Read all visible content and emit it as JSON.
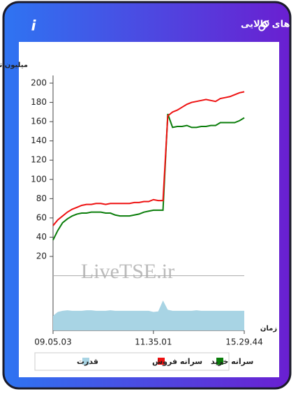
{
  "header": {
    "title": "سرانه ی خرید و فروش حقیقی در صندوق های کالایی",
    "info_icon": "i"
  },
  "chart_data": {
    "type": "line",
    "y_label": "میلیون تومان",
    "x_label": "زمان",
    "watermark": "LiveTSE.ir",
    "categories": [
      "09.05.03",
      null,
      null,
      null,
      null,
      null,
      null,
      null,
      null,
      null,
      null,
      null,
      null,
      null,
      null,
      null,
      null,
      null,
      null,
      null,
      null,
      "11.35.01",
      null,
      null,
      null,
      null,
      null,
      null,
      null,
      null,
      null,
      null,
      null,
      null,
      null,
      null,
      null,
      null,
      null,
      null,
      "15.29.44"
    ],
    "ylim": [
      0,
      200
    ],
    "yticks": [
      20,
      40,
      60,
      80,
      100,
      120,
      140,
      160,
      180,
      200
    ],
    "y2lim": [
      0,
      1
    ],
    "series": [
      {
        "name": "سرانه خرید",
        "color": "#0a7d0a",
        "values": [
          37,
          47,
          55,
          59,
          62,
          64,
          65,
          65,
          66,
          66,
          66,
          65,
          65,
          63,
          62,
          62,
          62,
          63,
          64,
          66,
          67,
          68,
          68,
          68,
          168,
          154,
          155,
          155,
          156,
          154,
          154,
          155,
          155,
          156,
          156,
          159,
          159,
          159,
          159,
          161,
          164
        ]
      },
      {
        "name": "سرانه فروش",
        "color": "#ee1111",
        "values": [
          52,
          58,
          62,
          66,
          69,
          71,
          73,
          74,
          74,
          75,
          75,
          74,
          75,
          75,
          75,
          75,
          75,
          76,
          76,
          77,
          77,
          79,
          78,
          78,
          166,
          170,
          172,
          175,
          178,
          180,
          181,
          182,
          183,
          182,
          181,
          184,
          185,
          186,
          188,
          190,
          191
        ]
      },
      {
        "name": "قدرت",
        "color": "#a8d4e4",
        "axis": "y2",
        "values": [
          0.27,
          0.34,
          0.36,
          0.37,
          0.36,
          0.36,
          0.36,
          0.37,
          0.37,
          0.36,
          0.36,
          0.36,
          0.37,
          0.36,
          0.36,
          0.36,
          0.36,
          0.36,
          0.36,
          0.36,
          0.36,
          0.34,
          0.35,
          0.55,
          0.38,
          0.36,
          0.36,
          0.36,
          0.36,
          0.36,
          0.37,
          0.36,
          0.36,
          0.36,
          0.36,
          0.36,
          0.36,
          0.36,
          0.36,
          0.36,
          0.36
        ]
      }
    ]
  }
}
